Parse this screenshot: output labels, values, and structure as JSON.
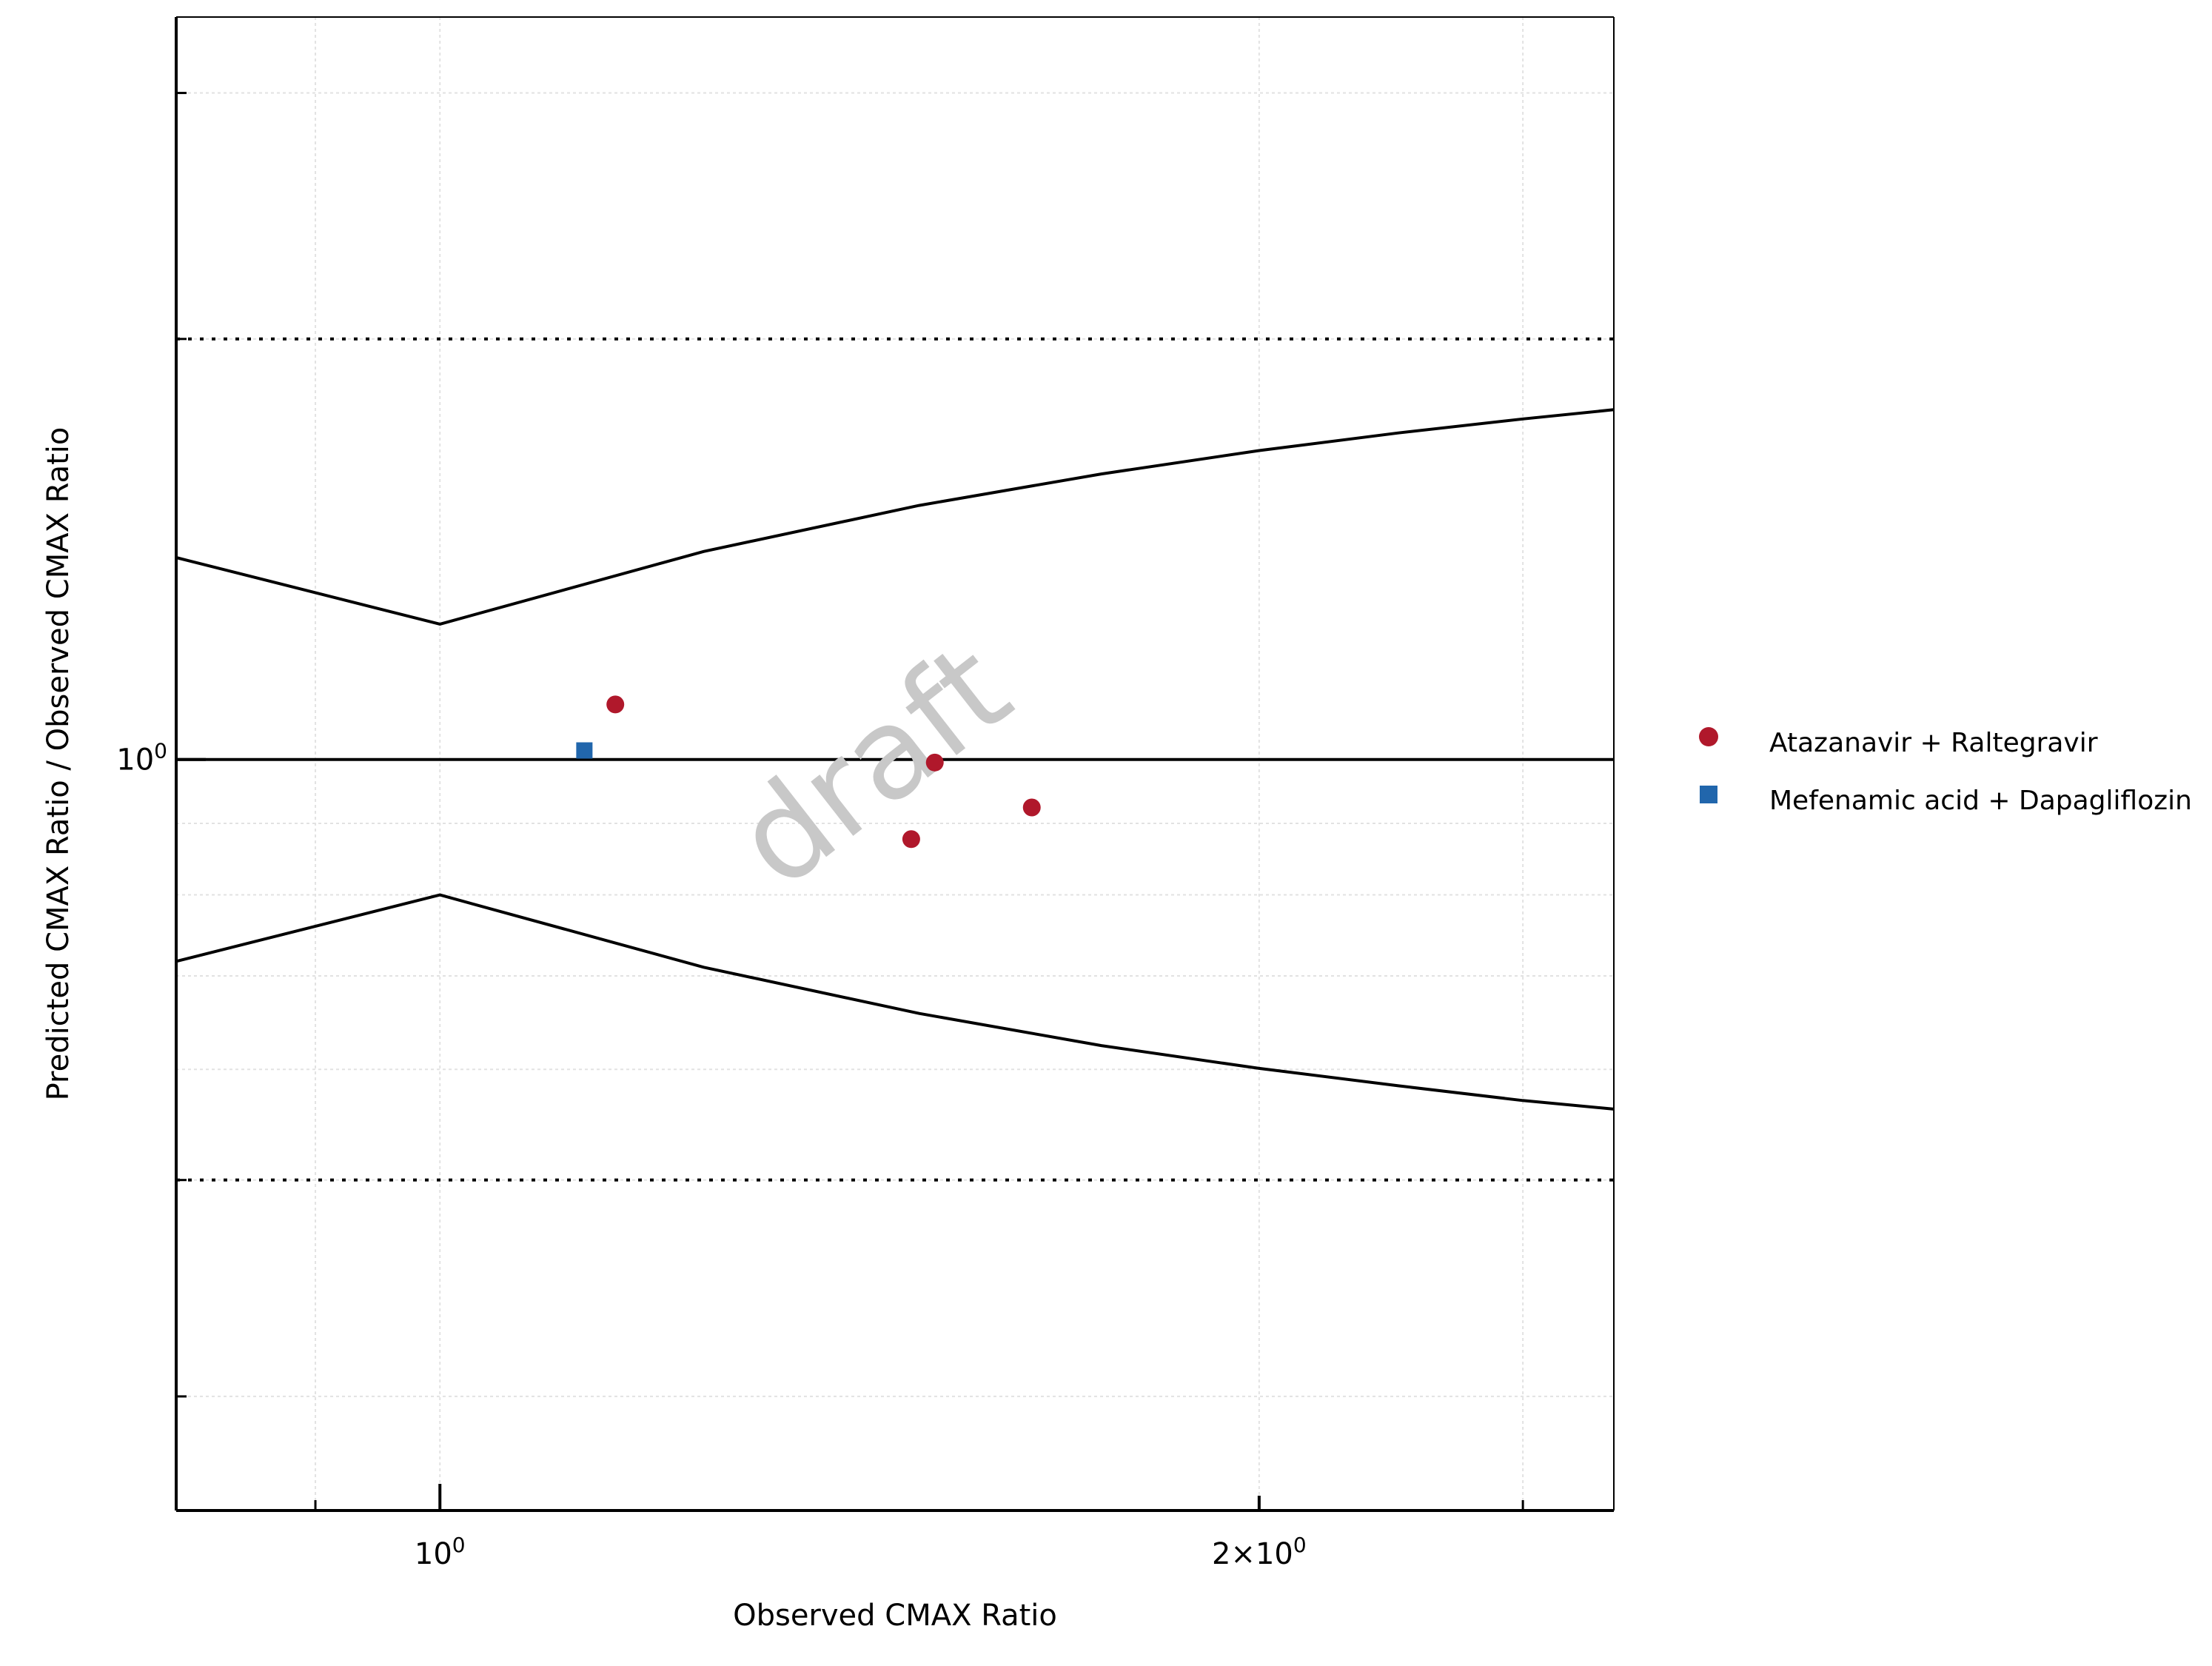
{
  "chart_data": {
    "type": "scatter",
    "title": "",
    "xlabel": "Observed CMAX Ratio",
    "ylabel": "Predicted CMAX Ratio / Observed CMAX Ratio",
    "x_scale": "log",
    "y_scale": "log",
    "xlim": [
      0.8,
      2.7
    ],
    "ylim": [
      0.29,
      3.4
    ],
    "x_ticks": [
      {
        "value": 1,
        "base": "10",
        "exp": "0",
        "mult": ""
      },
      {
        "value": 2,
        "base": "10",
        "exp": "0",
        "mult": "2×"
      }
    ],
    "y_ticks": [
      {
        "value": 1,
        "base": "10",
        "exp": "0",
        "mult": ""
      }
    ],
    "reference_lines": {
      "unity": 1,
      "twofold_dotted": [
        0.5,
        2
      ]
    },
    "guest_limits": {
      "x": [
        0.8,
        1.0,
        1.25,
        1.5,
        1.75,
        2.0,
        2.25,
        2.5,
        2.7
      ],
      "upper": [
        1.395,
        1.25,
        1.409,
        1.52,
        1.601,
        1.664,
        1.713,
        1.753,
        1.78
      ],
      "lower": [
        0.717,
        0.8,
        0.71,
        0.658,
        0.624,
        0.601,
        0.584,
        0.57,
        0.562
      ]
    },
    "series": [
      {
        "name": "Atazanavir + Raltegravir",
        "marker": "circle",
        "color": "#b0182b",
        "points": [
          {
            "x": 1.16,
            "y": 1.095
          },
          {
            "x": 1.52,
            "y": 0.995
          },
          {
            "x": 1.49,
            "y": 0.877
          },
          {
            "x": 1.65,
            "y": 0.924
          }
        ]
      },
      {
        "name": "Mefenamic acid + Dapagliflozin",
        "marker": "square",
        "color": "#2166ac",
        "points": [
          {
            "x": 1.13,
            "y": 1.015
          }
        ]
      }
    ],
    "legend_position": "right",
    "grid": true,
    "watermark": "draft"
  }
}
